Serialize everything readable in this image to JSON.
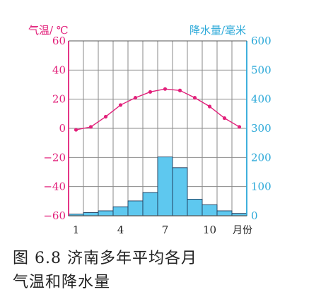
{
  "chart_data": {
    "type": "line+bar",
    "ylabel_left": "气温/ ℃",
    "ylabel_right": "降水量/毫米",
    "xlabel": "月份",
    "x": [
      1,
      2,
      3,
      4,
      5,
      6,
      7,
      8,
      9,
      10,
      11,
      12
    ],
    "x_ticks": [
      "1",
      "4",
      "7",
      "10"
    ],
    "y_left_ticks": [
      "60",
      "40",
      "20",
      "0",
      "−20",
      "−40",
      "−60"
    ],
    "y_right_ticks": [
      "600",
      "500",
      "400",
      "300",
      "200",
      "100",
      "0"
    ],
    "ylim_left": [
      -60,
      60
    ],
    "ylim_right": [
      0,
      600
    ],
    "series": [
      {
        "name": "气温",
        "kind": "line",
        "axis": "left",
        "color": "#e2207a",
        "values": [
          -1,
          1,
          8,
          16,
          21,
          25,
          27,
          26,
          21,
          15,
          7,
          1
        ]
      },
      {
        "name": "降水量",
        "kind": "bar",
        "axis": "right",
        "color": "#5ec8ef",
        "values": [
          6,
          11,
          17,
          31,
          51,
          80,
          202,
          165,
          57,
          38,
          17,
          8
        ]
      }
    ],
    "grid": true
  },
  "caption": {
    "line1": "图 6.8  济南多年平均各月",
    "line2": "气温和降水量"
  }
}
